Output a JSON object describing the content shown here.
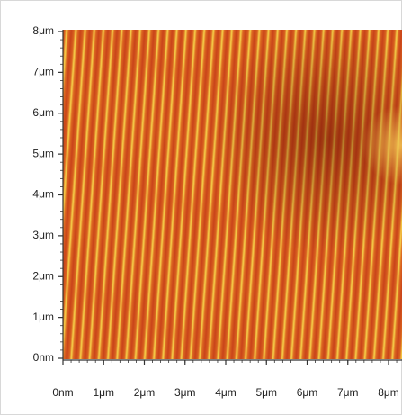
{
  "chart_data": {
    "type": "image",
    "xlim": [
      0,
      8
    ],
    "ylim": [
      0,
      8
    ],
    "xticks": [
      {
        "value": 0,
        "label": "0nm"
      },
      {
        "value": 1,
        "label": "1μm"
      },
      {
        "value": 2,
        "label": "2μm"
      },
      {
        "value": 3,
        "label": "3μm"
      },
      {
        "value": 4,
        "label": "4μm"
      },
      {
        "value": 5,
        "label": "5μm"
      },
      {
        "value": 6,
        "label": "6μm"
      },
      {
        "value": 7,
        "label": "7μm"
      },
      {
        "value": 8,
        "label": "8μm"
      }
    ],
    "yticks": [
      {
        "value": 0,
        "label": "0nm"
      },
      {
        "value": 1,
        "label": "1μm"
      },
      {
        "value": 2,
        "label": "2μm"
      },
      {
        "value": 3,
        "label": "3μm"
      },
      {
        "value": 4,
        "label": "4μm"
      },
      {
        "value": 5,
        "label": "5μm"
      },
      {
        "value": 6,
        "label": "6μm"
      },
      {
        "value": 7,
        "label": "7μm"
      },
      {
        "value": 8,
        "label": "8μm"
      }
    ]
  }
}
